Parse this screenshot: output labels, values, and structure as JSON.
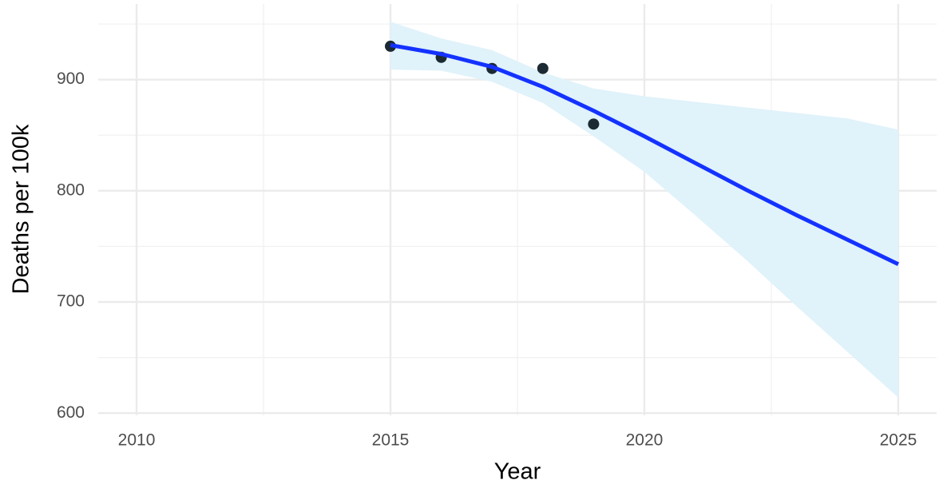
{
  "chart_data": {
    "type": "line",
    "x_label": "Year",
    "y_label": "Deaths per 100k",
    "xlim": [
      2009.245,
      2025.755
    ],
    "ylim": [
      598,
      968
    ],
    "xticks": [
      2010,
      2015,
      2020,
      2025
    ],
    "yticks": [
      600,
      700,
      800,
      900
    ],
    "xminor": [
      2012.5,
      2017.5,
      2022.5
    ],
    "yminor": [
      650,
      750,
      850,
      950
    ],
    "grid": true,
    "points": {
      "x": [
        2015,
        2016,
        2017,
        2018,
        2019
      ],
      "values": [
        930,
        920,
        910,
        910,
        860
      ],
      "color": "#1c2a33"
    },
    "fit": {
      "x": [
        2015,
        2016,
        2017,
        2018,
        2019,
        2020,
        2021,
        2022,
        2023,
        2024,
        2025
      ],
      "values": [
        931,
        923,
        911.5,
        893.5,
        872,
        849,
        825,
        801,
        778,
        756,
        734
      ],
      "upper": [
        952,
        937,
        926.5,
        906.5,
        892,
        885,
        880,
        875,
        870,
        865,
        855
      ],
      "lower": [
        909,
        908,
        898,
        879,
        849,
        817,
        778,
        738,
        696,
        655,
        614
      ],
      "color": "#1432ff",
      "band_color": "#e0f2fa"
    }
  }
}
